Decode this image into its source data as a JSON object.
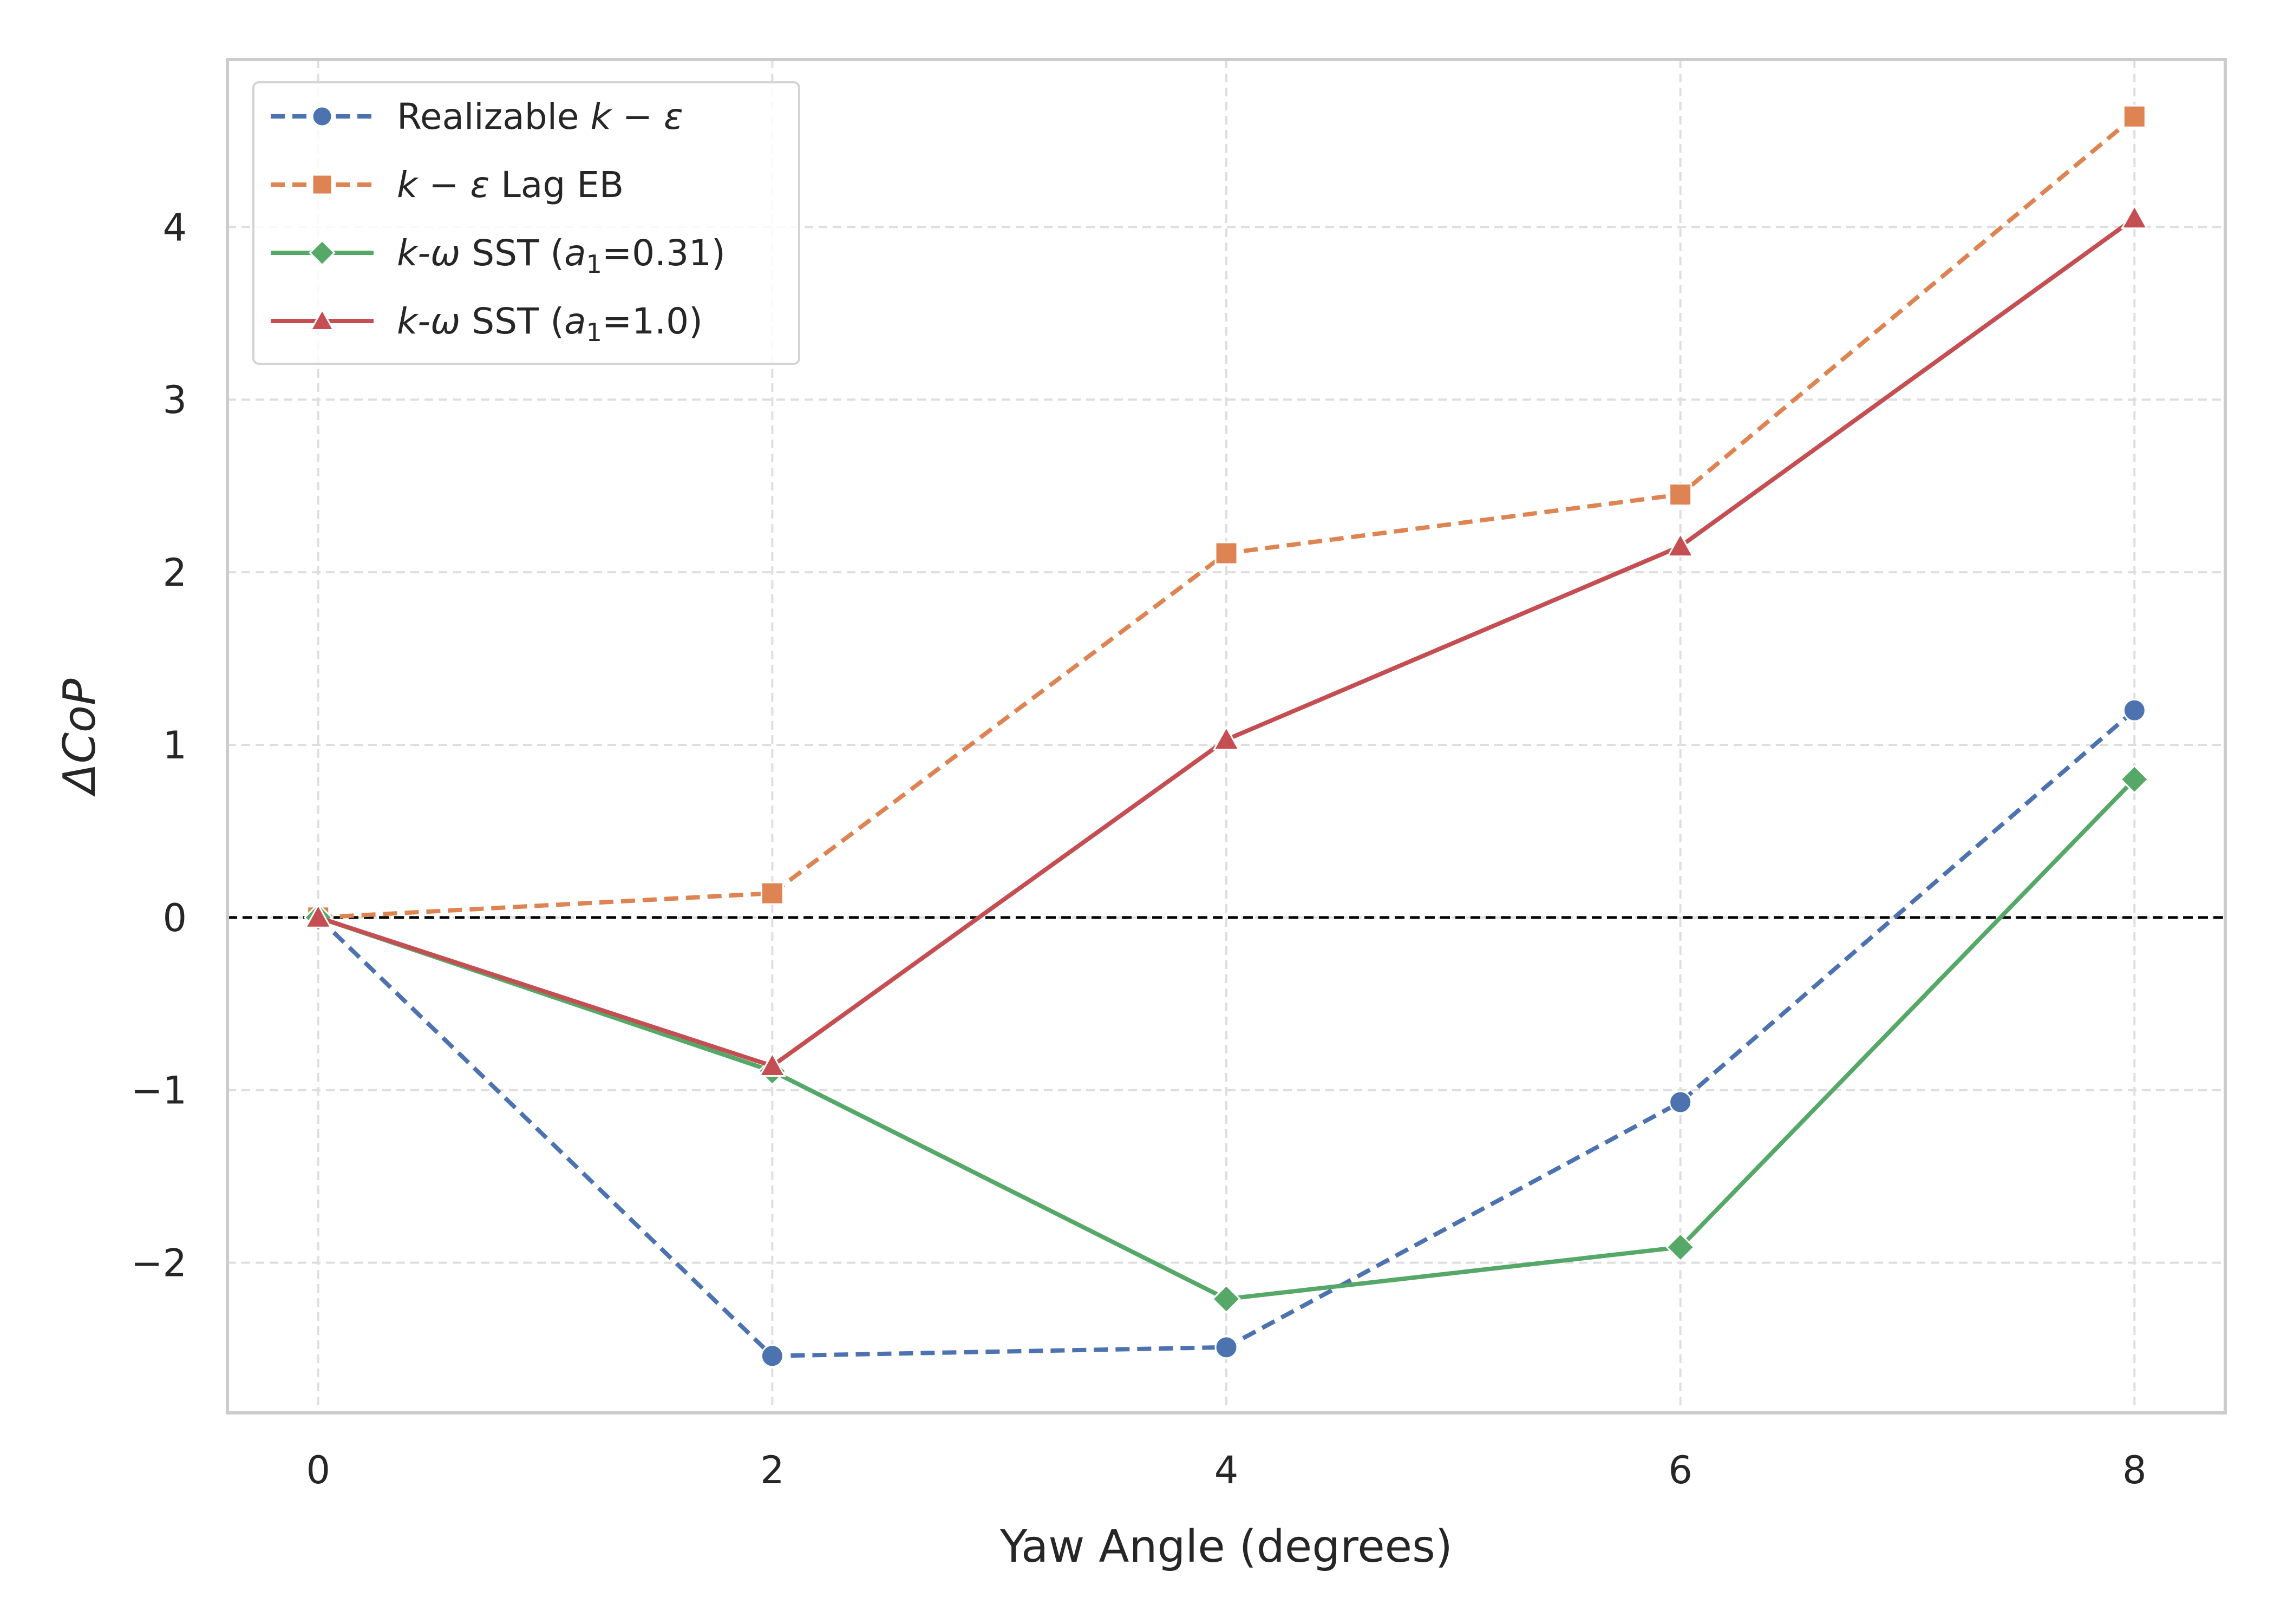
{
  "chart_data": {
    "type": "line",
    "xlabel": "Yaw Angle (degrees)",
    "ylabel": "ΔCoP",
    "x": [
      0,
      2,
      4,
      6,
      8
    ],
    "xlim": [
      -0.4,
      8.4
    ],
    "ylim": [
      -2.87,
      4.97
    ],
    "xticks": [
      0,
      2,
      4,
      6,
      8
    ],
    "yticks": [
      -2,
      -1,
      0,
      1,
      2,
      3,
      4
    ],
    "x_tick_labels": [
      "0",
      "2",
      "4",
      "6",
      "8"
    ],
    "y_tick_labels": [
      "−2",
      "−1",
      "0",
      "1",
      "2",
      "3",
      "4"
    ],
    "grid": true,
    "reference_line": {
      "y": 0,
      "style": "dashed",
      "color": "#000000"
    },
    "legend_position": "upper-left",
    "series": [
      {
        "name": "Realizable k − ε",
        "legend": {
          "pre": "Realizable ",
          "var": "k − ε",
          "post": ""
        },
        "values": [
          0,
          -2.54,
          -2.49,
          -1.07,
          1.2
        ],
        "color": "#4c72b0",
        "linestyle": "dashed",
        "marker": "circle"
      },
      {
        "name": "k − ε Lag EB",
        "legend": {
          "pre": "",
          "var": "k − ε",
          "post": " Lag EB"
        },
        "values": [
          0,
          0.14,
          2.11,
          2.45,
          4.64
        ],
        "color": "#dd8452",
        "linestyle": "dashed",
        "marker": "square"
      },
      {
        "name": "k-ω SST (a1=0.31)",
        "legend": {
          "pre": "",
          "var": "k-ω",
          "post": " SST (",
          "sub_var": "a",
          "sub": "1",
          "tail": "=0.31)"
        },
        "values": [
          0,
          -0.89,
          -2.21,
          -1.91,
          0.8
        ],
        "color": "#55a868",
        "linestyle": "solid",
        "marker": "diamond"
      },
      {
        "name": "k-ω SST (a1=1.0)",
        "legend": {
          "pre": "",
          "var": "k-ω",
          "post": " SST (",
          "sub_var": "a",
          "sub": "1",
          "tail": "=1.0)"
        },
        "values": [
          0,
          -0.86,
          1.03,
          2.15,
          4.05
        ],
        "color": "#c44e52",
        "linestyle": "solid",
        "marker": "triangle"
      }
    ]
  }
}
